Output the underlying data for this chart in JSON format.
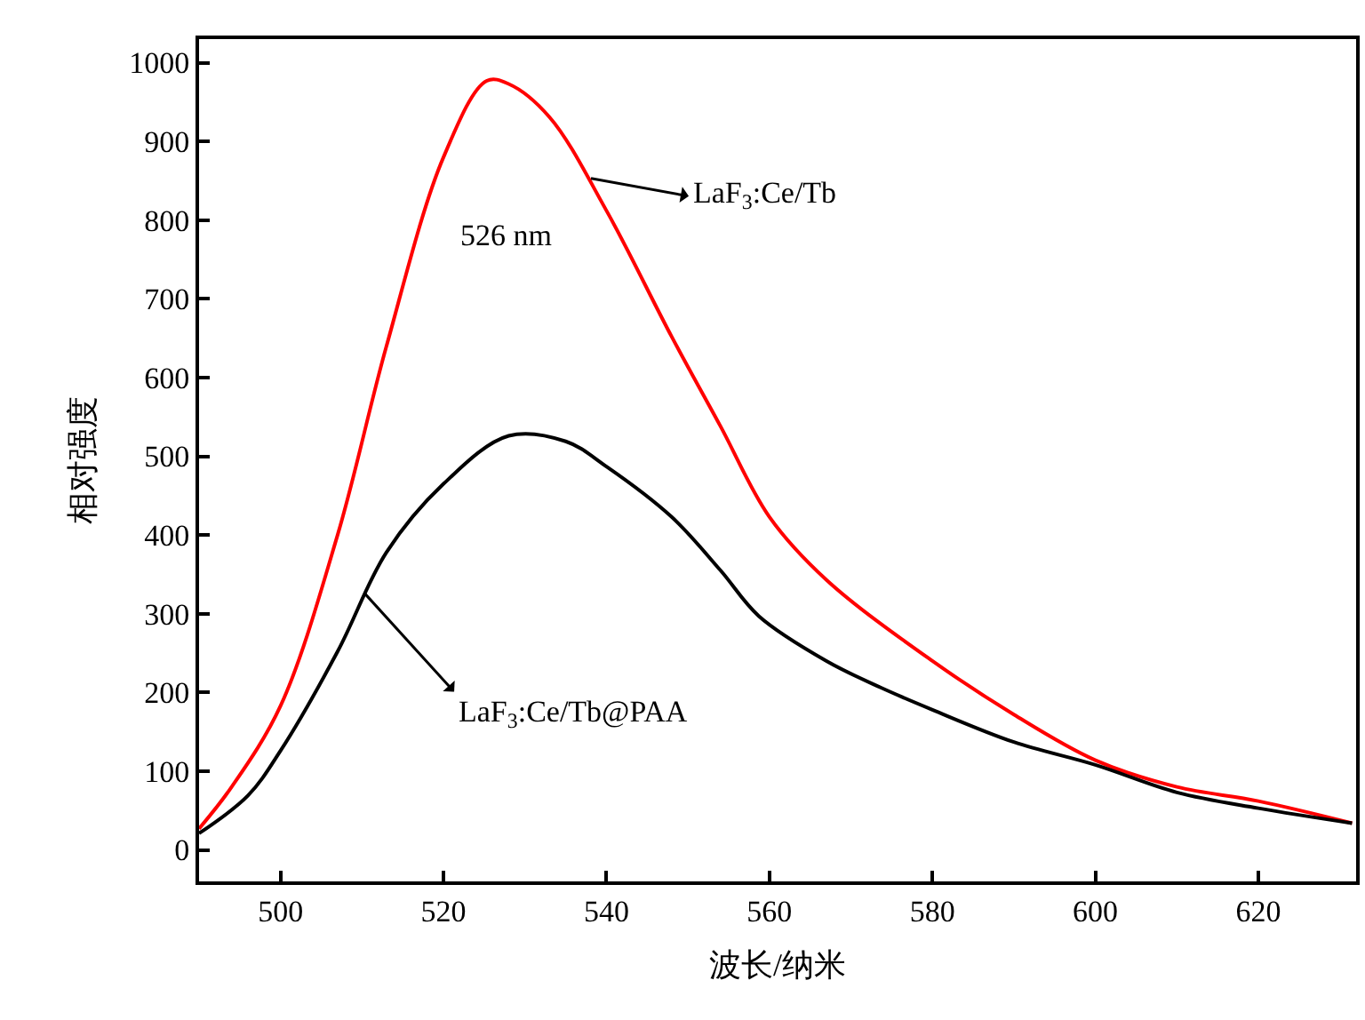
{
  "chart_data": {
    "type": "line",
    "xlabel": "波长/纳米",
    "ylabel": "相对强度",
    "xlim": [
      490,
      632
    ],
    "ylim": [
      -40,
      1030
    ],
    "xticks": [
      500,
      520,
      540,
      560,
      580,
      600,
      620
    ],
    "yticks": [
      0,
      100,
      200,
      300,
      400,
      500,
      600,
      700,
      800,
      900,
      1000
    ],
    "marker": "none",
    "line_style": "solid",
    "series": [
      {
        "color": "#ff0000",
        "x": [
          490,
          494,
          500,
          507,
          513,
          520,
          525.3,
          528,
          533,
          540,
          548,
          554,
          560,
          567,
          580,
          590,
          600,
          610,
          620,
          631.5
        ],
        "values": [
          27,
          80,
          183,
          400,
          640,
          880,
          977,
          973,
          931,
          812,
          652,
          538,
          423,
          343,
          240,
          172,
          114,
          80,
          62,
          34
        ]
      },
      {
        "color": "#000000",
        "x": [
          490,
          496,
          500,
          507,
          513,
          520,
          528,
          535,
          540,
          548,
          554,
          558.7,
          567,
          573.7,
          580,
          590,
          600,
          610,
          620,
          631.5
        ],
        "values": [
          21,
          69,
          126,
          252,
          378,
          465,
          526,
          519,
          487,
          423,
          355,
          297,
          240,
          206,
          178,
          137,
          108,
          73,
          53,
          34
        ]
      }
    ],
    "annotations": [
      "526 nm",
      {
        "text": "LaF$_{3}$:Ce/Tb",
        "x": 538.1,
        "y": 853
      },
      {
        "text": "LaF$_{3}$:Ce/Tb@PAA",
        "x": 510.4,
        "y": 325
      }
    ]
  }
}
